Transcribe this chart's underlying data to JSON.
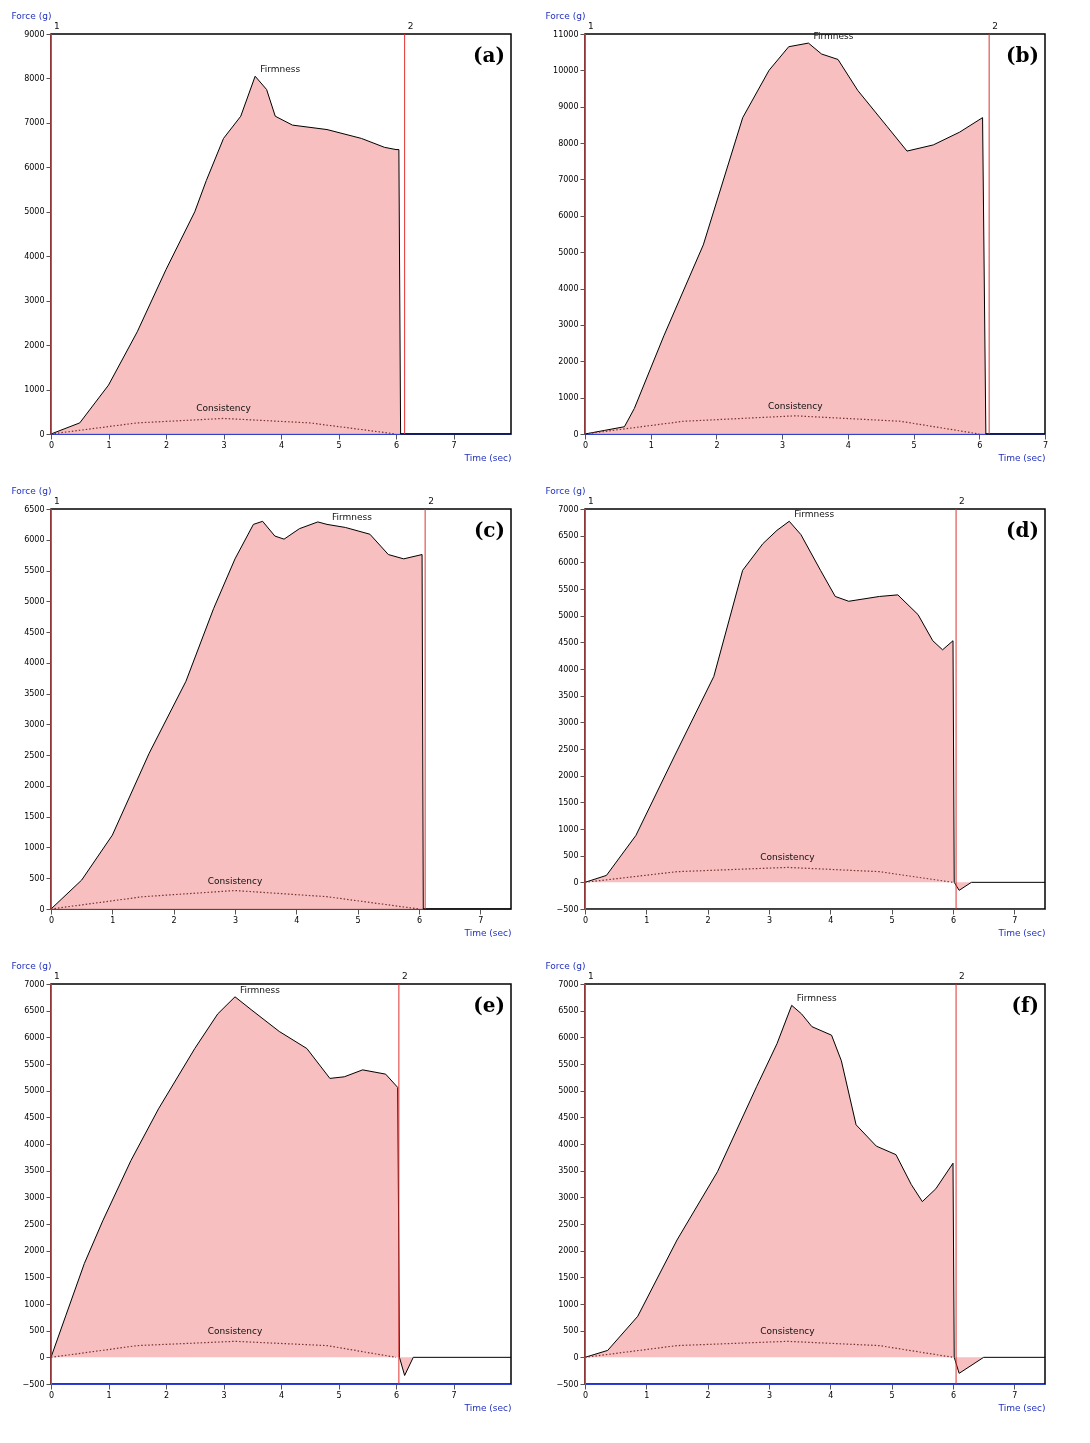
{
  "chart_data": [
    {
      "type": "area",
      "title": "(a)",
      "xlabel": "Time (sec)",
      "ylabel": "Force (g)",
      "xlim": [
        0,
        8
      ],
      "xticks": [
        0,
        1,
        2,
        3,
        4,
        5,
        6,
        7
      ],
      "ylim": [
        0,
        9000
      ],
      "yticks": [
        0,
        1000,
        2000,
        3000,
        4000,
        5000,
        6000,
        7000,
        8000,
        9000
      ],
      "grid": false,
      "series": [
        {
          "type": "area",
          "color": "#f6b8b8",
          "x": [
            0,
            0.5,
            1.0,
            1.5,
            2.0,
            2.5,
            2.7,
            3.0,
            3.3,
            3.55,
            3.75,
            3.9,
            4.2,
            4.8,
            5.4,
            5.8,
            6.0,
            6.05,
            6.08,
            8
          ],
          "values": [
            0,
            250,
            1100,
            2300,
            3700,
            5000,
            5700,
            6650,
            7150,
            8050,
            7750,
            7150,
            6950,
            6850,
            6650,
            6450,
            6400,
            6400,
            0,
            0
          ]
        },
        {
          "type": "line",
          "line_style": "dotted",
          "color": "#7a3030",
          "x": [
            0,
            1.5,
            3,
            4.5,
            6
          ],
          "values": [
            0,
            250,
            350,
            250,
            0
          ]
        }
      ],
      "ref_lines": [
        {
          "axis": "x",
          "value": 0,
          "color": "#e03030"
        },
        {
          "axis": "x",
          "value": 6.15,
          "color": "#e03030"
        }
      ],
      "annotations": [
        {
          "text": "Firmness",
          "x": 3.55,
          "y": 8050
        },
        {
          "text": "Consistency",
          "x": 3,
          "y": 350
        },
        {
          "text": "1",
          "x": 0,
          "y": 9000
        },
        {
          "text": "2",
          "x": 6.15,
          "y": 9000
        }
      ]
    },
    {
      "type": "area",
      "title": "(b)",
      "xlabel": "Time (sec)",
      "ylabel": "Force (g)",
      "xlim": [
        0,
        7
      ],
      "xticks": [
        0,
        1,
        2,
        3,
        4,
        5,
        6,
        7
      ],
      "ylim": [
        0,
        11000
      ],
      "yticks": [
        0,
        1000,
        2000,
        3000,
        4000,
        5000,
        6000,
        7000,
        8000,
        9000,
        10000,
        11000
      ],
      "grid": false,
      "series": [
        {
          "type": "area",
          "color": "#f6b8b8",
          "x": [
            0,
            0.3,
            0.6,
            0.75,
            1.2,
            1.8,
            2.4,
            2.8,
            3.1,
            3.4,
            3.6,
            3.85,
            4.15,
            4.6,
            4.9,
            5.3,
            5.7,
            6.05,
            6.1,
            7
          ],
          "values": [
            0,
            100,
            200,
            700,
            2700,
            5200,
            8700,
            10000,
            10650,
            10750,
            10450,
            10300,
            9450,
            8450,
            7780,
            7950,
            8300,
            8700,
            0,
            0
          ]
        },
        {
          "type": "line",
          "line_style": "dotted",
          "color": "#7a3030",
          "x": [
            0,
            1.5,
            3.2,
            4.8,
            6
          ],
          "values": [
            0,
            350,
            500,
            350,
            0
          ]
        }
      ],
      "ref_lines": [
        {
          "axis": "x",
          "value": 0,
          "color": "#e03030"
        },
        {
          "axis": "x",
          "value": 6.15,
          "color": "#e03030"
        }
      ],
      "annotations": [
        {
          "text": "Firmness",
          "x": 3.4,
          "y": 10750
        },
        {
          "text": "Consistency",
          "x": 3.2,
          "y": 500
        },
        {
          "text": "1",
          "x": 0,
          "y": 11000
        },
        {
          "text": "2",
          "x": 6.15,
          "y": 11000
        }
      ]
    },
    {
      "type": "area",
      "title": "(c)",
      "xlabel": "Time (sec)",
      "ylabel": "Force (g)",
      "xlim": [
        0,
        7.5
      ],
      "xticks": [
        0,
        1,
        2,
        3,
        4,
        5,
        6,
        7
      ],
      "ylim": [
        0,
        6500
      ],
      "yticks": [
        0,
        500,
        1000,
        1500,
        2000,
        2500,
        3000,
        3500,
        4000,
        4500,
        5000,
        5500,
        6000,
        6500
      ],
      "grid": false,
      "series": [
        {
          "type": "area",
          "color": "#f6b8b8",
          "x": [
            0,
            0.5,
            1.0,
            1.6,
            2.2,
            2.65,
            3.0,
            3.3,
            3.45,
            3.65,
            3.8,
            4.05,
            4.35,
            4.5,
            4.8,
            5.2,
            5.5,
            5.75,
            6.05,
            6.07,
            7.5
          ],
          "values": [
            0,
            470,
            1200,
            2530,
            3700,
            4880,
            5690,
            6250,
            6300,
            6060,
            6010,
            6180,
            6290,
            6250,
            6200,
            6090,
            5760,
            5690,
            5760,
            0,
            0
          ]
        },
        {
          "type": "line",
          "line_style": "dotted",
          "color": "#7a3030",
          "x": [
            0,
            1.5,
            3,
            4.5,
            6
          ],
          "values": [
            0,
            200,
            300,
            200,
            0
          ]
        }
      ],
      "ref_lines": [
        {
          "axis": "x",
          "value": 0,
          "color": "#e03030"
        },
        {
          "axis": "x",
          "value": 6.1,
          "color": "#e03030"
        }
      ],
      "annotations": [
        {
          "text": "Firmness",
          "x": 4.5,
          "y": 6250
        },
        {
          "text": "Consistency",
          "x": 3,
          "y": 300
        },
        {
          "text": "1",
          "x": 0,
          "y": 6500
        },
        {
          "text": "2",
          "x": 6.1,
          "y": 6500
        }
      ]
    },
    {
      "type": "area",
      "title": "(d)",
      "xlabel": "Time (sec)",
      "ylabel": "Force (g)",
      "xlim": [
        0,
        7.5
      ],
      "xticks": [
        0,
        1,
        2,
        3,
        4,
        5,
        6,
        7
      ],
      "ylim": [
        -500,
        7000
      ],
      "yticks": [
        -500,
        0,
        500,
        1000,
        1500,
        2000,
        2500,
        3000,
        3500,
        4000,
        4500,
        5000,
        5500,
        6000,
        6500,
        7000
      ],
      "grid": false,
      "series": [
        {
          "type": "area",
          "color": "#f6b8b8",
          "x": [
            0,
            0.35,
            0.83,
            1.46,
            2.1,
            2.57,
            2.9,
            3.13,
            3.33,
            3.52,
            3.84,
            4.08,
            4.3,
            4.8,
            5.1,
            5.43,
            5.67,
            5.83,
            6.0,
            6.02,
            6.1,
            6.3,
            7.5
          ],
          "values": [
            0,
            130,
            880,
            2370,
            3860,
            5850,
            6350,
            6600,
            6770,
            6520,
            5850,
            5360,
            5270,
            5360,
            5390,
            5020,
            4530,
            4360,
            4530,
            0,
            -150,
            0,
            0
          ]
        },
        {
          "type": "line",
          "line_style": "dotted",
          "color": "#7a3030",
          "x": [
            0,
            1.5,
            3.3,
            4.8,
            6
          ],
          "values": [
            0,
            200,
            280,
            200,
            0
          ]
        }
      ],
      "ref_lines": [
        {
          "axis": "x",
          "value": 0,
          "color": "#e03030"
        },
        {
          "axis": "x",
          "value": 6.05,
          "color": "#e03030"
        }
      ],
      "annotations": [
        {
          "text": "Firmness",
          "x": 3.33,
          "y": 6770
        },
        {
          "text": "Consistency",
          "x": 3.3,
          "y": 280
        },
        {
          "text": "1",
          "x": 0,
          "y": 7000
        },
        {
          "text": "2",
          "x": 6.05,
          "y": 7000
        }
      ]
    },
    {
      "type": "area",
      "title": "(e)",
      "xlabel": "Time (sec)",
      "ylabel": "Force (g)",
      "xlim": [
        0,
        8
      ],
      "xticks": [
        0,
        1,
        2,
        3,
        4,
        5,
        6,
        7
      ],
      "ylim": [
        -500,
        7000
      ],
      "yticks": [
        -500,
        0,
        500,
        1000,
        1500,
        2000,
        2500,
        3000,
        3500,
        4000,
        4500,
        5000,
        5500,
        6000,
        6500,
        7000
      ],
      "grid": false,
      "series": [
        {
          "type": "area",
          "color": "#f6b8b8",
          "x": [
            0,
            0.26,
            0.58,
            0.9,
            1.39,
            1.87,
            2.5,
            2.9,
            3.2,
            3.48,
            3.97,
            4.45,
            4.85,
            5.1,
            5.42,
            5.82,
            6.03,
            6.06,
            6.15,
            6.3,
            8
          ],
          "values": [
            0,
            790,
            1760,
            2560,
            3690,
            4660,
            5790,
            6440,
            6760,
            6520,
            6110,
            5790,
            5230,
            5260,
            5390,
            5310,
            5060,
            0,
            -340,
            0,
            0
          ]
        },
        {
          "type": "line",
          "line_style": "dotted",
          "color": "#7a3030",
          "x": [
            0,
            1.5,
            3.2,
            4.8,
            6
          ],
          "values": [
            0,
            220,
            300,
            220,
            0
          ]
        }
      ],
      "ref_lines": [
        {
          "axis": "x",
          "value": 0,
          "color": "#e03030"
        },
        {
          "axis": "x",
          "value": 6.05,
          "color": "#e03030"
        }
      ],
      "annotations": [
        {
          "text": "Firmness",
          "x": 3.2,
          "y": 6760
        },
        {
          "text": "Consistency",
          "x": 3.2,
          "y": 300
        },
        {
          "text": "1",
          "x": 0,
          "y": 7000
        },
        {
          "text": "2",
          "x": 6.05,
          "y": 7000
        }
      ]
    },
    {
      "type": "area",
      "title": "(f)",
      "xlabel": "Time (sec)",
      "ylabel": "Force (g)",
      "xlim": [
        0,
        7.5
      ],
      "xticks": [
        0,
        1,
        2,
        3,
        4,
        5,
        6,
        7
      ],
      "ylim": [
        -500,
        7000
      ],
      "yticks": [
        -500,
        0,
        500,
        1000,
        1500,
        2000,
        2500,
        3000,
        3500,
        4000,
        4500,
        5000,
        5500,
        6000,
        6500,
        7000
      ],
      "grid": false,
      "series": [
        {
          "type": "area",
          "color": "#f6b8b8",
          "x": [
            0,
            0.37,
            0.86,
            1.5,
            2.16,
            2.8,
            3.13,
            3.37,
            3.53,
            3.7,
            4.02,
            4.18,
            4.42,
            4.75,
            5.07,
            5.32,
            5.5,
            5.72,
            6.0,
            6.02,
            6.1,
            6.5,
            7.5
          ],
          "values": [
            0,
            130,
            770,
            2200,
            3480,
            5080,
            5880,
            6600,
            6440,
            6200,
            6040,
            5560,
            4360,
            3960,
            3800,
            3240,
            2920,
            3160,
            3640,
            0,
            -300,
            0,
            0
          ]
        },
        {
          "type": "line",
          "line_style": "dotted",
          "color": "#7a3030",
          "x": [
            0,
            1.5,
            3.3,
            4.8,
            6
          ],
          "values": [
            0,
            220,
            300,
            220,
            0
          ]
        }
      ],
      "ref_lines": [
        {
          "axis": "x",
          "value": 0,
          "color": "#e03030"
        },
        {
          "axis": "x",
          "value": 6.05,
          "color": "#e03030"
        }
      ],
      "annotations": [
        {
          "text": "Firmness",
          "x": 3.37,
          "y": 6600
        },
        {
          "text": "Consistency",
          "x": 3.3,
          "y": 300
        },
        {
          "text": "1",
          "x": 0,
          "y": 7000
        },
        {
          "text": "2",
          "x": 6.05,
          "y": 7000
        }
      ]
    }
  ]
}
